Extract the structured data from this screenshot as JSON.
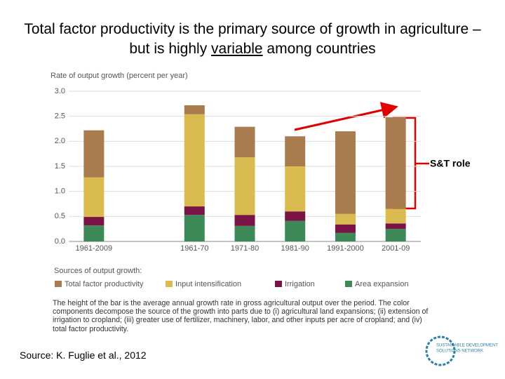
{
  "title_parts": [
    "Total factor productivity is the primary source of growth in agriculture – but is highly ",
    "variable",
    " among countries"
  ],
  "chart_data": {
    "type": "bar",
    "stacked": true,
    "y_label": "Rate of output growth (percent per year)",
    "categories": [
      "1961-2009",
      null,
      "1961-70",
      "1971-80",
      "1981-90",
      "1991-2000",
      "2001-09"
    ],
    "series": [
      {
        "name": "Total factor productivity",
        "color": "#a87c4f",
        "values": [
          0.94,
          null,
          0.18,
          0.61,
          0.6,
          1.65,
          1.83
        ]
      },
      {
        "name": "Input intensification",
        "color": "#d9bb4f",
        "values": [
          0.79,
          null,
          1.84,
          1.15,
          0.9,
          0.21,
          0.29
        ]
      },
      {
        "name": "Irrigation",
        "color": "#7a1446",
        "values": [
          0.17,
          null,
          0.17,
          0.22,
          0.19,
          0.17,
          0.11
        ]
      },
      {
        "name": "Area expansion",
        "color": "#3d8a58",
        "values": [
          0.32,
          null,
          0.53,
          0.31,
          0.41,
          0.17,
          0.25
        ]
      }
    ],
    "ylim": [
      0,
      3
    ],
    "yticks": [
      {
        "value": 0,
        "label": "0.0"
      },
      0.5,
      {
        "value": 1,
        "label": "1.0"
      },
      1.5,
      {
        "value": 2,
        "label": "2.0"
      },
      2.5,
      {
        "value": 3,
        "label": "3.0"
      }
    ],
    "grid": true,
    "legend_title": "Sources of output growth:",
    "annotation": "S&T role"
  },
  "note": "The height of the bar is the average annual growth rate in gross agricultural output over the period. The color components decompose the source of the growth into parts due to (i) agricultural land expansions; (ii) extension of irrigation to cropland; (iii) greater use of fertilizer, machinery, labor, and other inputs per acre of cropland; and (iv) total factor productivity.",
  "source": "Source: K. Fuglie et al., 2012",
  "logo": [
    "SUSTAINABLE DEVELOPMENT",
    "SOLUTIONS NETWORK"
  ]
}
